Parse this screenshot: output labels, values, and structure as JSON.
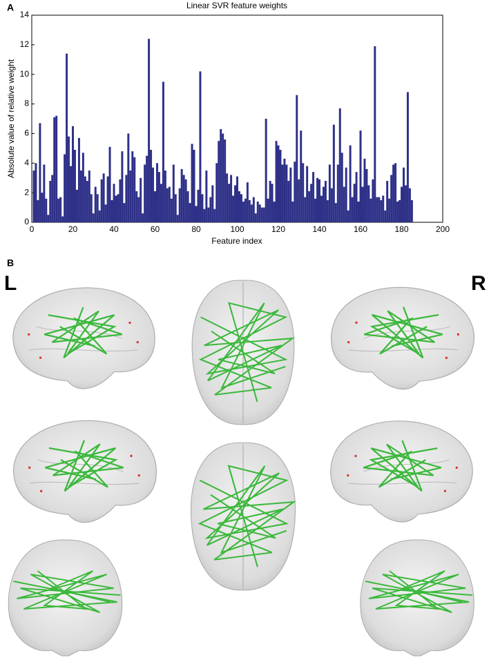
{
  "chart_data": {
    "type": "bar",
    "title": "Linear SVR feature weights",
    "x_label": "Feature index",
    "y_label": "Absolute value of relative weight",
    "color": "#2e3088",
    "x": [
      1,
      2,
      3,
      4,
      5,
      6,
      7,
      8,
      9,
      10,
      11,
      12,
      13,
      14,
      15,
      16,
      17,
      18,
      19,
      20,
      21,
      22,
      23,
      24,
      25,
      26,
      27,
      28,
      29,
      30,
      31,
      32,
      33,
      34,
      35,
      36,
      37,
      38,
      39,
      40,
      41,
      42,
      43,
      44,
      45,
      46,
      47,
      48,
      49,
      50,
      51,
      52,
      53,
      54,
      55,
      56,
      57,
      58,
      59,
      60,
      61,
      62,
      63,
      64,
      65,
      66,
      67,
      68,
      69,
      70,
      71,
      72,
      73,
      74,
      75,
      76,
      77,
      78,
      79,
      80,
      81,
      82,
      83,
      84,
      85,
      86,
      87,
      88,
      89,
      90,
      91,
      92,
      93,
      94,
      95,
      96,
      97,
      98,
      99,
      100,
      101,
      102,
      103,
      104,
      105,
      106,
      107,
      108,
      109,
      110,
      111,
      112,
      113,
      114,
      115,
      116,
      117,
      118,
      119,
      120,
      121,
      122,
      123,
      124,
      125,
      126,
      127,
      128,
      129,
      130,
      131,
      132,
      133,
      134,
      135,
      136,
      137,
      138,
      139,
      140,
      141,
      142,
      143,
      144,
      145,
      146,
      147,
      148,
      149,
      150,
      151,
      152,
      153,
      154,
      155,
      156,
      157,
      158,
      159,
      160,
      161,
      162,
      163,
      164,
      165,
      166,
      167,
      168,
      169,
      170,
      171,
      172,
      173,
      174,
      175,
      176,
      177,
      178,
      179,
      180,
      181,
      182,
      183,
      184,
      185
    ],
    "values": [
      3.5,
      4,
      1.5,
      6.7,
      2,
      3.9,
      1.6,
      0.5,
      2.8,
      3.2,
      7.1,
      7.2,
      1.6,
      1.7,
      0.4,
      4.6,
      11.4,
      5.8,
      3.8,
      6.5,
      4.9,
      2.2,
      5.7,
      3.5,
      4.7,
      3.1,
      2.8,
      3.5,
      1.9,
      0.6,
      2.4,
      1.9,
      0.8,
      2.9,
      3.3,
      1.2,
      3.1,
      5.1,
      1.5,
      2.6,
      1.8,
      1.9,
      2.9,
      4.8,
      1.3,
      3.2,
      6.0,
      3.5,
      4.8,
      4.4,
      2.1,
      1.7,
      3.0,
      0.6,
      3.9,
      4.5,
      12.4,
      4.9,
      3.7,
      2.1,
      4.0,
      3.4,
      2.6,
      9.5,
      3.5,
      2.3,
      2.4,
      1.6,
      3.9,
      1.9,
      0.5,
      2.3,
      3.6,
      3.2,
      2.9,
      2.1,
      1.3,
      5.3,
      4.9,
      1.1,
      2.2,
      10.2,
      1.9,
      0.9,
      3.5,
      1.0,
      1.7,
      2.5,
      0.9,
      4.0,
      5.5,
      6.3,
      6.0,
      5.6,
      3.3,
      2.6,
      3.2,
      1.8,
      2.5,
      3.1,
      2.1,
      1.9,
      1.4,
      1.6,
      2.7,
      1.5,
      1.2,
      1.7,
      0.6,
      1.4,
      1.2,
      1.0,
      1.0,
      7.0,
      1.6,
      2.8,
      2.6,
      1.4,
      5.5,
      5.2,
      4.9,
      3.9,
      4.3,
      3.9,
      2.8,
      3.7,
      1.4,
      4.1,
      8.6,
      2.9,
      6.2,
      4.0,
      1.7,
      3.8,
      2.1,
      2.6,
      3.4,
      1.6,
      3.0,
      2.9,
      1.8,
      2.4,
      2.8,
      1.5,
      3.9,
      2.3,
      6.6,
      1.3,
      3.9,
      7.7,
      4.7,
      2.4,
      3.7,
      0.8,
      5.2,
      1.7,
      2.6,
      3.4,
      1.4,
      6.2,
      2.4,
      4.3,
      3.6,
      2.5,
      1.6,
      2.9,
      11.9,
      1.7,
      1.7,
      1.5,
      1.8,
      0.8,
      2.8,
      1.6,
      3.2,
      3.9,
      4.0,
      1.4,
      1.5,
      2.4,
      3.7,
      2.5,
      8.8,
      2.3,
      1.5
    ],
    "xlim": [
      0,
      200
    ],
    "xticks": [
      0,
      20,
      40,
      60,
      80,
      100,
      120,
      140,
      160,
      180,
      200
    ],
    "ylim": [
      0,
      14
    ],
    "yticks": [
      0,
      2,
      4,
      6,
      8,
      10,
      12,
      14
    ]
  },
  "panel_labels": {
    "a": "A",
    "b": "B"
  },
  "side_labels": {
    "left": "L",
    "right": "R"
  }
}
